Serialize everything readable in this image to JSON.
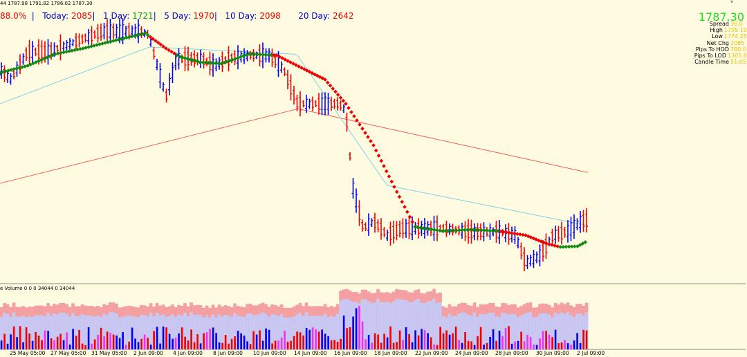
{
  "ohlc_text": "44  1787.98 1791.82 1786.02 1787.30",
  "ranges": {
    "pct": "88.0%",
    "sep0": "  |   ",
    "today_label": "Today:",
    "today_value": "2085",
    "sep1": "|   ",
    "day1_label": "1 Day:",
    "day1_value": "1721",
    "sep2": "|   ",
    "day5_label": "5 Day:",
    "day5_value": "1970",
    "sep3": "|   ",
    "day10_label": "10 Day:",
    "day10_value": "2098",
    "sep4": "   ",
    "day20_label": "20 Day:",
    "day20_value": "2642"
  },
  "price": "1787.30",
  "stats": [
    {
      "label": "Spread",
      "value": "36.0"
    },
    {
      "label": "High",
      "value": "1795.10"
    },
    {
      "label": "Low",
      "value": "1774.25"
    },
    {
      "label": "Net Chg",
      "value": "2085"
    },
    {
      "label": "Pips To HOD",
      "value": "780.0"
    },
    {
      "label": "Pips To LOD",
      "value": "1305.0"
    },
    {
      "label": "Candle Time",
      "value": "51:05"
    }
  ],
  "volume_label": "e Volume 0 0 0 34044 0 34044",
  "dates": [
    "25 May 05:00",
    "27 May 05:00",
    "31 May 05:00",
    "2 Jun 09:00",
    "4 Jun 09:00",
    "8 Jun 09:00",
    "10 Jun 09:00",
    "14 Jun 09:00",
    "16 Jun 09:00",
    "18 Jun 09:00",
    "22 Jun 09:00",
    "24 Jun 09:00",
    "28 Jun 09:00",
    "30 Jun 09:00",
    "2 Jul 09:00"
  ],
  "colors": {
    "background": "#fffbe0",
    "bull": "#0000ee",
    "bear": "#ee0000",
    "ma_fast": "#7fd3e8",
    "ma_slow": "#f06060",
    "signal_up": "#118811",
    "signal_down": "#ee0000",
    "pct": "#ee0000",
    "today": "#ee0000",
    "day1": "#119911",
    "day5": "#0000cc",
    "day10": "#0000cc",
    "day20": "#ee0000"
  }
}
